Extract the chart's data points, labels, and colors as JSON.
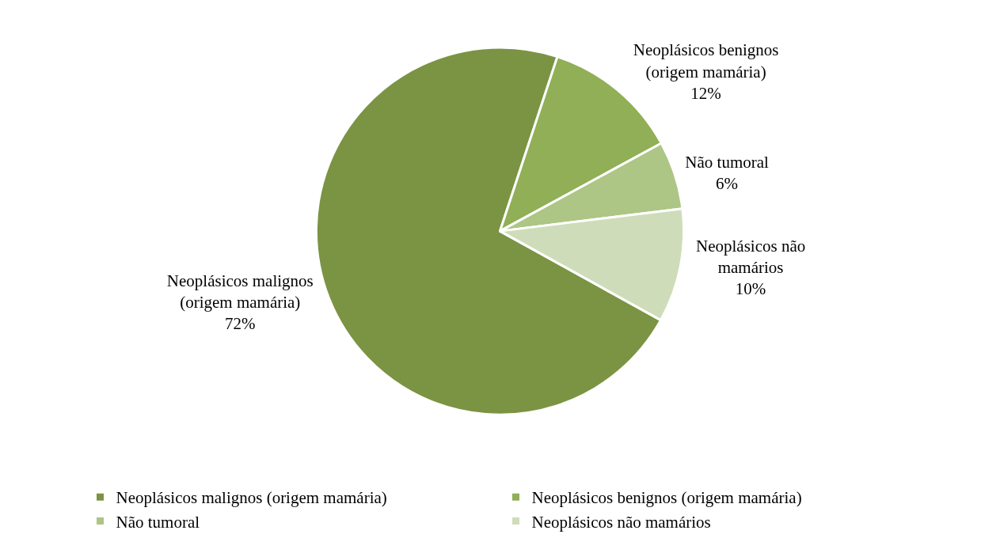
{
  "chart_data": {
    "type": "pie",
    "categories": [
      "Neoplásicos malignos (origem mamária)",
      "Neoplásicos benignos (origem mamária)",
      "Não tumoral",
      "Neoplásicos não mamários"
    ],
    "values": [
      72,
      12,
      6,
      10
    ],
    "colors": [
      "#7b9444",
      "#90af56",
      "#adc585",
      "#cfdcb9"
    ],
    "value_labels": [
      "72%",
      "12%",
      "6%",
      "10%"
    ],
    "legend": "bottom"
  }
}
